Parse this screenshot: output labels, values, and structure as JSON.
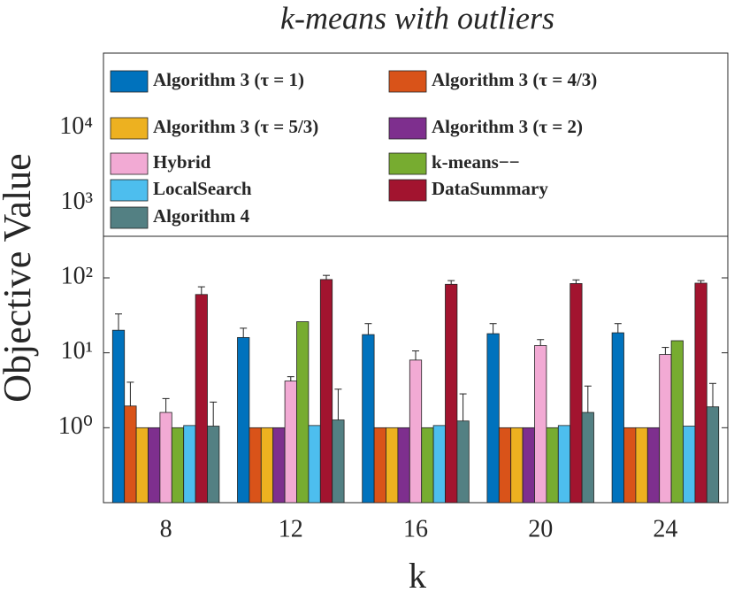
{
  "chart_data": {
    "type": "bar",
    "title": "k-means with outliers",
    "xlabel": "k",
    "ylabel": "Objective Value",
    "categories": [
      "8",
      "12",
      "16",
      "20",
      "24"
    ],
    "log_y": true,
    "ylim": [
      0.1,
      100000
    ],
    "yticks": [
      {
        "value": 1,
        "label": "10⁰"
      },
      {
        "value": 10,
        "label": "10¹"
      },
      {
        "value": 100,
        "label": "10²"
      },
      {
        "value": 1000,
        "label": "10³"
      },
      {
        "value": 10000,
        "label": "10⁴"
      }
    ],
    "legend": "top",
    "series": [
      {
        "name": "Algorithm 3 (τ = 1)",
        "color": "#0072BD",
        "values": [
          20,
          16,
          17.5,
          18,
          18.5
        ],
        "errors": [
          13,
          5.3,
          7,
          6.5,
          6
        ]
      },
      {
        "name": "Algorithm 3 (τ = 4/3)",
        "color": "#D95319",
        "values": [
          1.95,
          1,
          1,
          1,
          1
        ],
        "errors": [
          2.1,
          null,
          null,
          null,
          null
        ]
      },
      {
        "name": "Algorithm 3 (τ = 5/3)",
        "color": "#EDB120",
        "values": [
          1,
          1,
          1,
          1,
          1
        ],
        "errors": [
          null,
          null,
          null,
          null,
          null
        ]
      },
      {
        "name": "Algorithm 3 (τ = 2)",
        "color": "#7E2F8E",
        "values": [
          1,
          1,
          1,
          1,
          1
        ],
        "errors": [
          null,
          null,
          null,
          null,
          null
        ]
      },
      {
        "name": "Hybrid",
        "color": "#F2AAD4",
        "values": [
          1.6,
          4.2,
          8,
          12.5,
          9.5
        ],
        "errors": [
          0.85,
          0.6,
          2.6,
          2.5,
          2.3
        ]
      },
      {
        "name": "k-means−−",
        "color": "#77AC30",
        "values": [
          1,
          26,
          1,
          1,
          14.5
        ],
        "errors": [
          null,
          null,
          null,
          null,
          null
        ]
      },
      {
        "name": "LocalSearch",
        "color": "#4DBEEE",
        "values": [
          1.07,
          1.07,
          1.07,
          1.07,
          1.05
        ],
        "errors": [
          null,
          null,
          null,
          null,
          null
        ]
      },
      {
        "name": "DataSummary",
        "color": "#A2142F",
        "values": [
          60,
          95,
          82,
          84,
          85
        ],
        "errors": [
          16,
          13,
          10,
          10,
          7
        ]
      },
      {
        "name": "Algorithm 4",
        "color": "#538083",
        "values": [
          1.05,
          1.27,
          1.23,
          1.6,
          1.9
        ],
        "errors": [
          1.15,
          2,
          1.6,
          2,
          2
        ]
      }
    ]
  }
}
